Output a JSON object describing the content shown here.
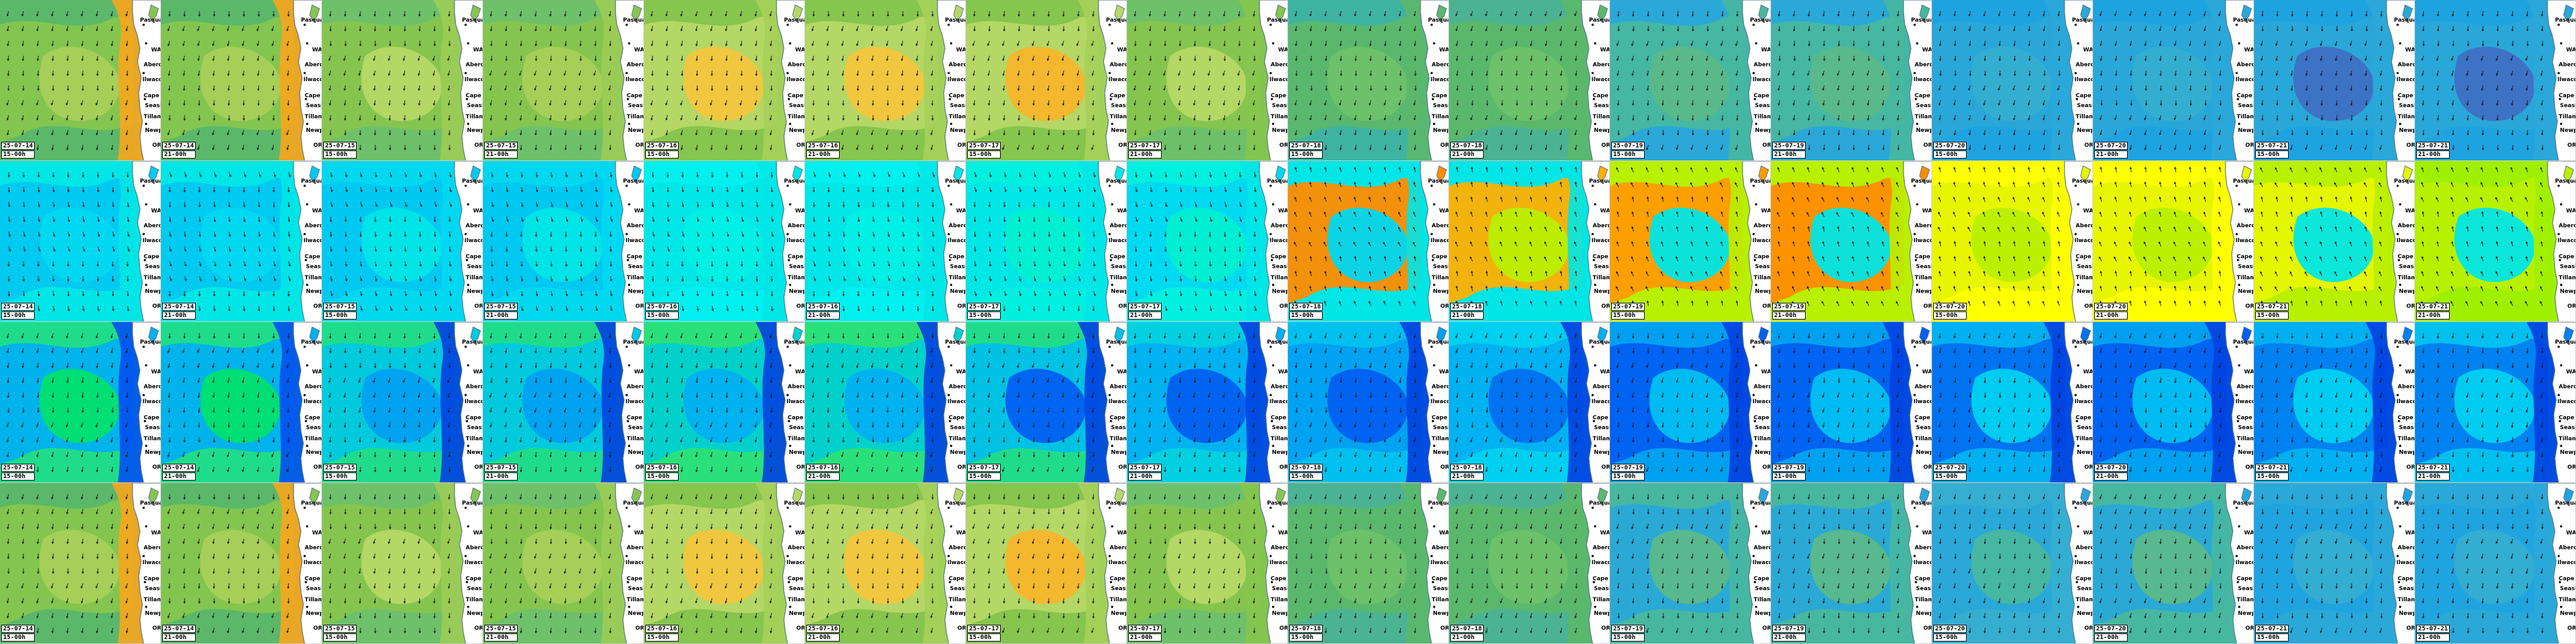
{
  "rows": [
    {
      "name": "row-1",
      "fills": [
        [
          "#5bb86a",
          "#86c54e",
          "#a6d05a",
          "#f7a51d"
        ],
        [
          "#5bb86a",
          "#86c54e",
          "#a6d05a",
          "#f7a51d"
        ],
        [
          "#6ec16a",
          "#86c54e",
          "#b7d866",
          "#9ccc55"
        ],
        [
          "#6ec16a",
          "#86c54e",
          "#a6d05a",
          "#9ccc55"
        ],
        [
          "#86c54e",
          "#b7d866",
          "#f4c63d",
          "#a6d05a"
        ],
        [
          "#86c54e",
          "#b7d866",
          "#f4c63d",
          "#a6d05a"
        ],
        [
          "#86c54e",
          "#b7d866",
          "#f7b62b",
          "#a6d05a"
        ],
        [
          "#6ec16a",
          "#86c54e",
          "#b7d866",
          "#86c54e"
        ],
        [
          "#3fb3a2",
          "#5bb86a",
          "#6ec16a",
          "#5bb86a"
        ],
        [
          "#4cb392",
          "#5bb86a",
          "#6ec16a",
          "#5bb86a"
        ],
        [
          "#2aa8d8",
          "#47b7a0",
          "#5bb88a",
          "#47b7a0"
        ],
        [
          "#2aa8d8",
          "#47b7a0",
          "#5bb88a",
          "#47b7a0"
        ],
        [
          "#1fa3e0",
          "#2aa8d8",
          "#35aed0",
          "#2aa8d8"
        ],
        [
          "#1fa3e0",
          "#2aa8d8",
          "#35aed0",
          "#2aa8d8"
        ],
        [
          "#1fa3e0",
          "#2aa8d8",
          "#3f6fc4",
          "#2aa8d8"
        ],
        [
          "#1fa3e0",
          "#2aa8d8",
          "#3f6fc4",
          "#2aa8d8"
        ]
      ]
    },
    {
      "name": "row-2",
      "fills": [
        [
          "#00e6e6",
          "#00c8f0",
          "#00d8f0",
          "#00e6e6"
        ],
        [
          "#00e6e6",
          "#00c8f0",
          "#00d8f0",
          "#00e6e6"
        ],
        [
          "#00d8f0",
          "#00c8f0",
          "#00e6e6",
          "#00d8f0"
        ],
        [
          "#00d8f0",
          "#00c8f0",
          "#00e6e6",
          "#00d8f0"
        ],
        [
          "#00f0f0",
          "#00e6e6",
          "#00f0e6",
          "#00e6e6"
        ],
        [
          "#00f0f0",
          "#00e6e6",
          "#00f0e6",
          "#00e6e6"
        ],
        [
          "#00f0e0",
          "#00e6e6",
          "#00f0d0",
          "#00e6e6"
        ],
        [
          "#00f0e0",
          "#00d8f0",
          "#00f0d0",
          "#00e6e6"
        ],
        [
          "#00e6e6",
          "#ff8c00",
          "#00d8f0",
          "#00e6e6"
        ],
        [
          "#00e6e6",
          "#ffb000",
          "#b8f000",
          "#00e6e6"
        ],
        [
          "#b8f000",
          "#ff9a00",
          "#00e6e6",
          "#b8f000"
        ],
        [
          "#b8f000",
          "#ff8c00",
          "#00e6e6",
          "#b8f000"
        ],
        [
          "#ffff00",
          "#e6f500",
          "#b8f000",
          "#ffff00"
        ],
        [
          "#ffff00",
          "#e6f500",
          "#b8f000",
          "#ffff00"
        ],
        [
          "#b8f000",
          "#e6f500",
          "#00e6e6",
          "#b8f000"
        ],
        [
          "#9ef000",
          "#b8f000",
          "#00e6e6",
          "#9ef000"
        ]
      ]
    },
    {
      "name": "row-3",
      "fills": [
        [
          "#1edc8c",
          "#00b0f0",
          "#00e070",
          "#0050f0"
        ],
        [
          "#1edc8c",
          "#00b0f0",
          "#00e070",
          "#0050f0"
        ],
        [
          "#1edc8c",
          "#00c8e0",
          "#00a0f0",
          "#0040e0"
        ],
        [
          "#1edc8c",
          "#00c8e0",
          "#00a0f0",
          "#0040e0"
        ],
        [
          "#2ae07a",
          "#00d0d0",
          "#00b0f0",
          "#0040e0"
        ],
        [
          "#2ae07a",
          "#00d0d0",
          "#00b0f0",
          "#0040e0"
        ],
        [
          "#1edc8c",
          "#00c0e8",
          "#0060f0",
          "#0040e0"
        ],
        [
          "#00d0e0",
          "#00b0f0",
          "#0060f0",
          "#0040e0"
        ],
        [
          "#00c0f0",
          "#00a0f0",
          "#0060f0",
          "#0040e0"
        ],
        [
          "#00d0f0",
          "#00b0f0",
          "#0070f0",
          "#0040e0"
        ],
        [
          "#00a0f0",
          "#0060f0",
          "#00c0f0",
          "#0040e0"
        ],
        [
          "#00a0f0",
          "#0060f0",
          "#00c0f0",
          "#0040e0"
        ],
        [
          "#00b0f0",
          "#0070f0",
          "#00d0f0",
          "#0040e0"
        ],
        [
          "#00a0f0",
          "#0060f0",
          "#00c0f0",
          "#0040e0"
        ],
        [
          "#00b0f0",
          "#0080f0",
          "#00d0f0",
          "#0040e0"
        ],
        [
          "#00c0f0",
          "#0080f0",
          "#00d0f0",
          "#0040e0"
        ]
      ]
    },
    {
      "name": "row-4",
      "fills": [
        [
          "#5bb86a",
          "#86c54e",
          "#a6d05a",
          "#f7a51d"
        ],
        [
          "#5bb86a",
          "#86c54e",
          "#a6d05a",
          "#f7a51d"
        ],
        [
          "#6ec16a",
          "#86c54e",
          "#b7d866",
          "#9ccc55"
        ],
        [
          "#6ec16a",
          "#86c54e",
          "#a6d05a",
          "#9ccc55"
        ],
        [
          "#86c54e",
          "#b7d866",
          "#f4c63d",
          "#a6d05a"
        ],
        [
          "#86c54e",
          "#b7d866",
          "#f4c63d",
          "#a6d05a"
        ],
        [
          "#86c54e",
          "#b7d866",
          "#f7b62b",
          "#a6d05a"
        ],
        [
          "#6ec16a",
          "#86c54e",
          "#b7d866",
          "#86c54e"
        ],
        [
          "#4cb392",
          "#5bb86a",
          "#6ec16a",
          "#5bb86a"
        ],
        [
          "#4cb392",
          "#5bb86a",
          "#6ec16a",
          "#5bb86a"
        ],
        [
          "#47b7a0",
          "#2aa8d8",
          "#5bb88a",
          "#47b7a0"
        ],
        [
          "#47b7a0",
          "#2aa8d8",
          "#5bb88a",
          "#47b7a0"
        ],
        [
          "#35aed0",
          "#2aa8d8",
          "#47b7a0",
          "#35aed0"
        ],
        [
          "#47b7a0",
          "#2aa8d8",
          "#5bb88a",
          "#47b7a0"
        ],
        [
          "#2aa8d8",
          "#1fa3e0",
          "#35aed0",
          "#2aa8d8"
        ],
        [
          "#2aa8d8",
          "#1fa3e0",
          "#35aed0",
          "#2aa8d8"
        ]
      ]
    }
  ],
  "stamps": [
    {
      "date": "25-07-14",
      "time": "15-00h"
    },
    {
      "date": "25-07-14",
      "time": "21-00h"
    },
    {
      "date": "25-07-15",
      "time": "15-00h"
    },
    {
      "date": "25-07-15",
      "time": "21-00h"
    },
    {
      "date": "25-07-16",
      "time": "15-00h"
    },
    {
      "date": "25-07-16",
      "time": "21-00h"
    },
    {
      "date": "25-07-17",
      "time": "15-00h"
    },
    {
      "date": "25-07-17",
      "time": "21-00h"
    },
    {
      "date": "25-07-18",
      "time": "15-00h"
    },
    {
      "date": "25-07-18",
      "time": "21-00h"
    },
    {
      "date": "25-07-19",
      "time": "15-00h"
    },
    {
      "date": "25-07-19",
      "time": "21-00h"
    },
    {
      "date": "25-07-20",
      "time": "15-00h"
    },
    {
      "date": "25-07-20",
      "time": "21-00h"
    },
    {
      "date": "25-07-21",
      "time": "15-00h"
    },
    {
      "date": "25-07-21",
      "time": "21-00h"
    }
  ],
  "map_labels": {
    "state": "WA",
    "place_1": "Pasquay",
    "place_2": "Aberdeen",
    "place_3": "Ilwaco",
    "place_4": "Grays Harbor",
    "place_5": "Cape Pt",
    "place_6": "Seaside",
    "place_7": "Tillamook",
    "place_8": "Lincoln",
    "place_9": "Newport",
    "place_10": "OR"
  },
  "colors": {
    "land": "#ffffff",
    "coast_outline": "#5b6f86",
    "arrow": "#1a1a1a",
    "stamp_bg": "#ffffff",
    "stamp_text": "#000000"
  }
}
